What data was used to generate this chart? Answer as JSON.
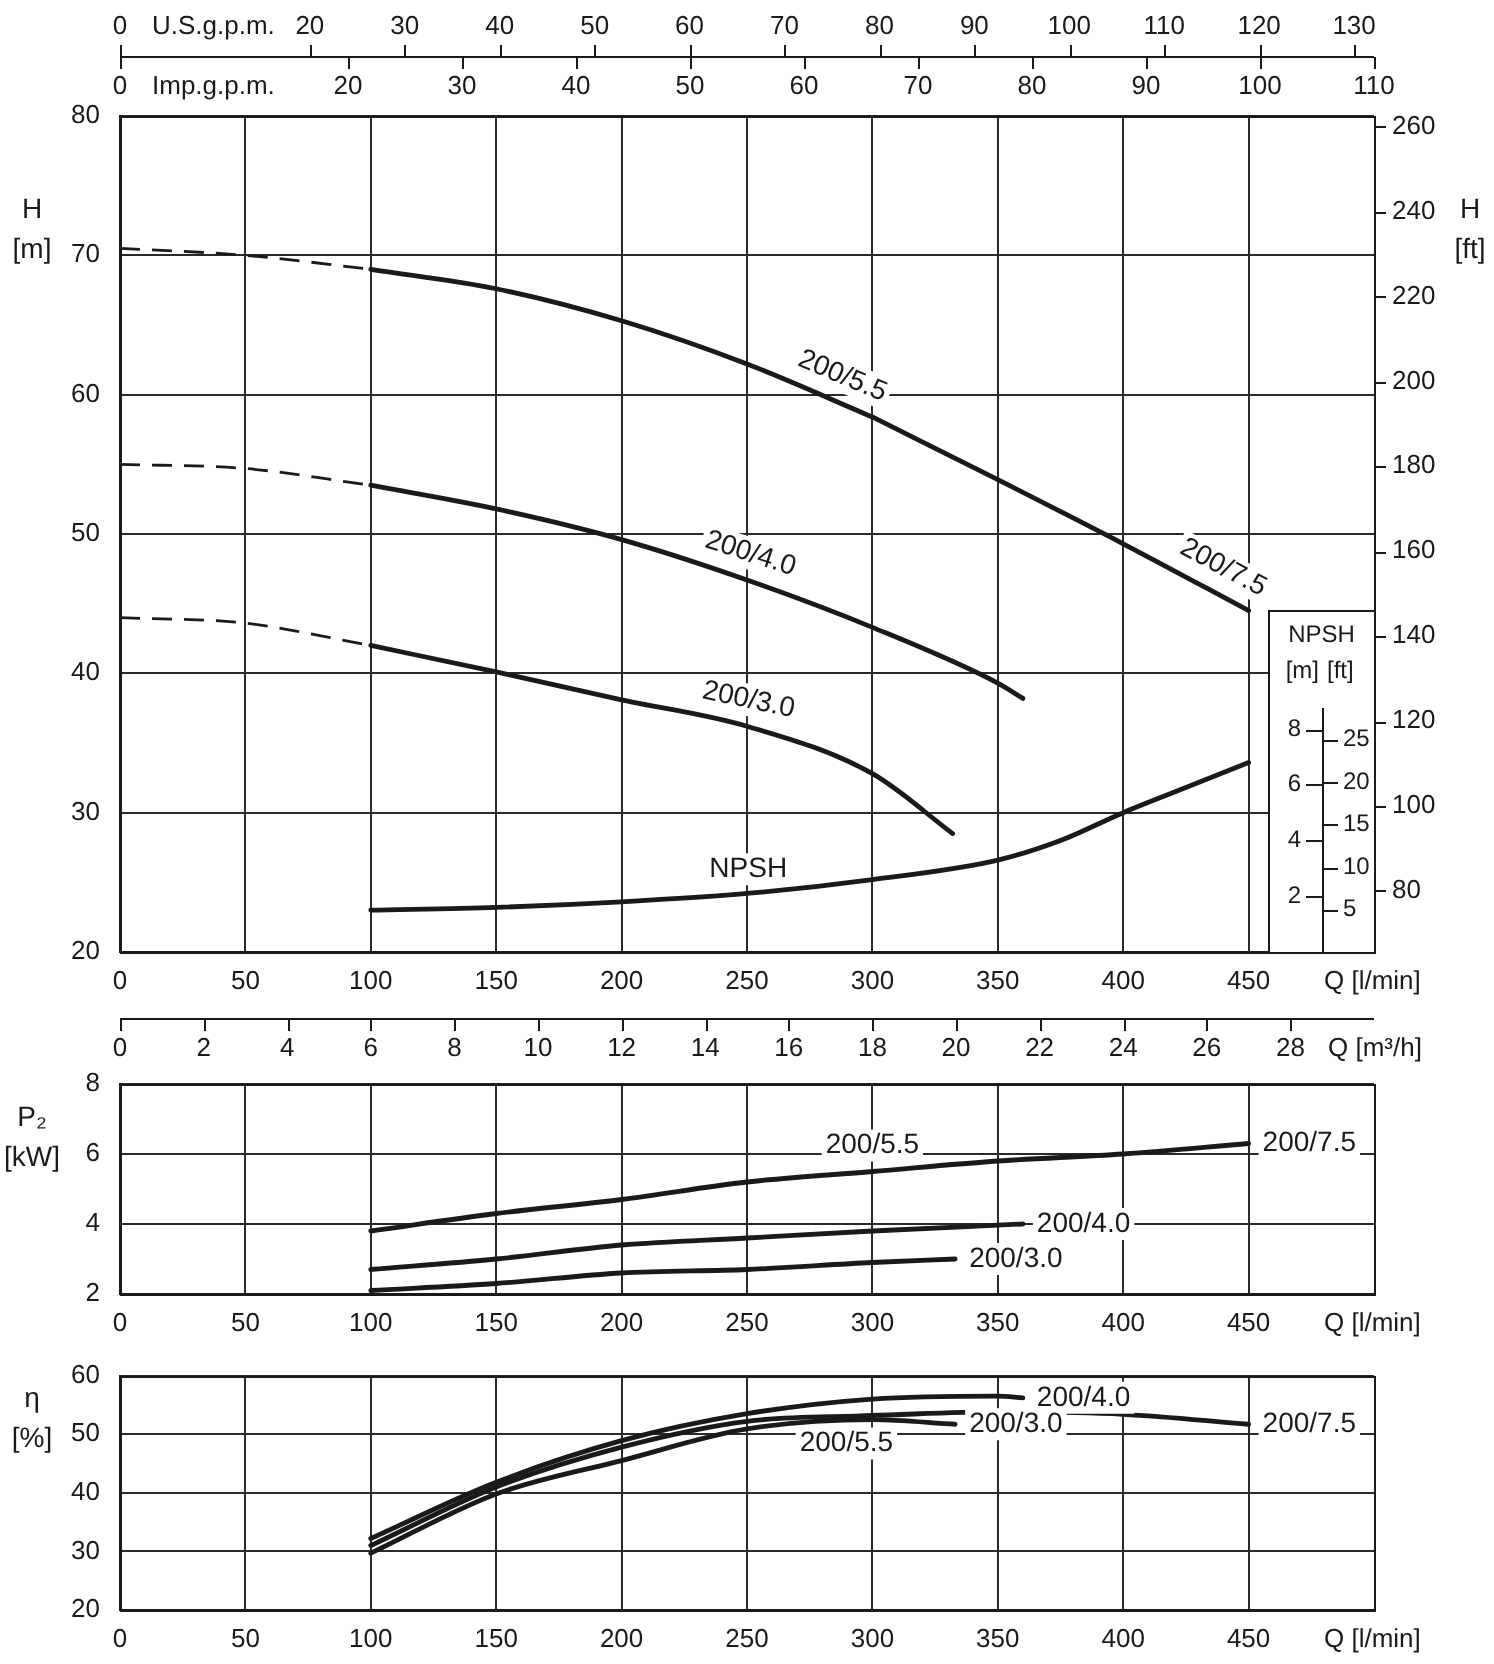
{
  "chart_data": [
    {
      "type": "line",
      "xlabel": "Q [l/min]",
      "ylabel": "H [m]",
      "y2label": "H [ft]",
      "x2label": "U.S.g.p.m.",
      "xlim": [
        0,
        500
      ],
      "xticks": [
        0,
        50,
        100,
        150,
        200,
        250,
        300,
        350,
        400,
        450
      ],
      "ylim": [
        20,
        80
      ],
      "yticks": [
        20,
        30,
        40,
        50,
        60,
        70,
        80
      ],
      "y2lim": [
        65.6,
        262.5
      ],
      "y2ticks": [
        80,
        100,
        120,
        140,
        160,
        180,
        200,
        220,
        240,
        260
      ],
      "x2lim": [
        0,
        132.1
      ],
      "x2ticks": [
        0,
        20,
        30,
        40,
        50,
        60,
        70,
        80,
        90,
        100,
        110,
        120,
        130
      ],
      "grid": true,
      "series": [
        {
          "color": "#1a1a1a",
          "line_style": "dashed",
          "x": [
            0,
            50,
            100
          ],
          "values": [
            70.5,
            70.0,
            69.0
          ]
        },
        {
          "name": "200/5.5",
          "color": "#1a1a1a",
          "x": [
            100,
            150,
            200,
            250,
            300
          ],
          "values": [
            69.0,
            67.6,
            65.3,
            62.2,
            58.4
          ]
        },
        {
          "name": "200/7.5",
          "color": "#1a1a1a",
          "x": [
            300,
            350,
            400,
            450
          ],
          "values": [
            58.4,
            53.9,
            49.3,
            44.5
          ]
        },
        {
          "color": "#1a1a1a",
          "line_style": "dashed",
          "x": [
            0,
            50,
            100
          ],
          "values": [
            55.0,
            54.7,
            53.5
          ]
        },
        {
          "name": "200/4.0",
          "color": "#1a1a1a",
          "x": [
            100,
            150,
            200,
            250,
            300,
            350,
            360
          ],
          "values": [
            53.5,
            51.8,
            49.6,
            46.7,
            43.3,
            39.3,
            38.2
          ]
        },
        {
          "color": "#1a1a1a",
          "line_style": "dashed",
          "x": [
            0,
            50,
            100
          ],
          "values": [
            44.0,
            43.6,
            42.0
          ]
        },
        {
          "name": "200/3.0",
          "color": "#1a1a1a",
          "x": [
            100,
            150,
            200,
            250,
            300,
            332
          ],
          "values": [
            42.0,
            40.1,
            38.1,
            36.2,
            32.8,
            28.5
          ]
        }
      ]
    },
    {
      "type": "line",
      "ylabel": "[m]",
      "y2label": "[ft]",
      "x2label": "Imp.g.p.m.",
      "annotations": [
        "NPSH"
      ],
      "tick_labels": "y",
      "xlim": [
        0,
        500
      ],
      "ylim": [
        0,
        30
      ],
      "yticks": [
        2,
        4,
        6,
        8
      ],
      "y2lim": [
        0,
        98.4
      ],
      "y2ticks": [
        5,
        10,
        15,
        20,
        25
      ],
      "x2lim": [
        0,
        110
      ],
      "x2ticks": [
        0,
        20,
        30,
        40,
        50,
        60,
        70,
        80,
        90,
        100,
        110
      ],
      "series": [
        {
          "name": "NPSH",
          "color": "#1a1a1a",
          "x": [
            100,
            150,
            200,
            250,
            300,
            350,
            375,
            400,
            425,
            450
          ],
          "values": [
            1.5,
            1.6,
            1.8,
            2.1,
            2.6,
            3.3,
            4.0,
            5.0,
            5.9,
            6.8
          ]
        }
      ]
    },
    {
      "type": "line",
      "xlabel": "Q [l/min]",
      "ylabel": "P₂ [kW]",
      "x2label": "Q [m³/h]",
      "xlim": [
        0,
        500
      ],
      "xticks": [
        0,
        50,
        100,
        150,
        200,
        250,
        300,
        350,
        400,
        450
      ],
      "ylim": [
        2,
        8
      ],
      "yticks": [
        2,
        4,
        6,
        8
      ],
      "x2lim": [
        0,
        30
      ],
      "x2ticks": [
        0,
        2,
        4,
        6,
        8,
        10,
        12,
        14,
        16,
        18,
        20,
        22,
        24,
        26,
        28
      ],
      "grid": true,
      "series": [
        {
          "name": "200/5.5",
          "color": "#1a1a1a",
          "x": [
            100,
            150,
            200,
            250,
            300
          ],
          "values": [
            3.8,
            4.3,
            4.7,
            5.2,
            5.5
          ]
        },
        {
          "name": "200/7.5",
          "color": "#1a1a1a",
          "x": [
            300,
            350,
            400,
            450
          ],
          "values": [
            5.5,
            5.8,
            6.0,
            6.3
          ]
        },
        {
          "name": "200/4.0",
          "color": "#1a1a1a",
          "x": [
            100,
            150,
            200,
            250,
            300,
            360
          ],
          "values": [
            2.7,
            3.0,
            3.4,
            3.6,
            3.8,
            4.0
          ]
        },
        {
          "name": "200/3.0",
          "color": "#1a1a1a",
          "x": [
            100,
            150,
            200,
            250,
            300,
            333
          ],
          "values": [
            2.1,
            2.3,
            2.6,
            2.7,
            2.9,
            3.0
          ]
        }
      ]
    },
    {
      "type": "line",
      "xlabel": "Q [l/min]",
      "ylabel": "η [%]",
      "xlim": [
        0,
        500
      ],
      "xticks": [
        0,
        50,
        100,
        150,
        200,
        250,
        300,
        350,
        400,
        450
      ],
      "ylim": [
        20,
        60
      ],
      "yticks": [
        20,
        30,
        40,
        50,
        60
      ],
      "grid": true,
      "series": [
        {
          "name": "200/5.5",
          "color": "#1a1a1a",
          "x": [
            100,
            150,
            200,
            250,
            300
          ],
          "values": [
            31.0,
            41.0,
            47.8,
            52.2,
            53.2
          ]
        },
        {
          "name": "200/7.5",
          "color": "#1a1a1a",
          "x": [
            300,
            350,
            400,
            450
          ],
          "values": [
            53.2,
            53.8,
            53.4,
            51.7
          ]
        },
        {
          "name": "200/4.0",
          "color": "#1a1a1a",
          "x": [
            100,
            150,
            200,
            250,
            300,
            350,
            360
          ],
          "values": [
            32.2,
            41.8,
            48.9,
            53.5,
            56.0,
            56.5,
            56.2
          ]
        },
        {
          "name": "200/3.0",
          "color": "#1a1a1a",
          "x": [
            100,
            150,
            200,
            250,
            300,
            333
          ],
          "values": [
            29.7,
            39.8,
            45.5,
            50.9,
            52.5,
            51.7
          ]
        }
      ]
    }
  ]
}
